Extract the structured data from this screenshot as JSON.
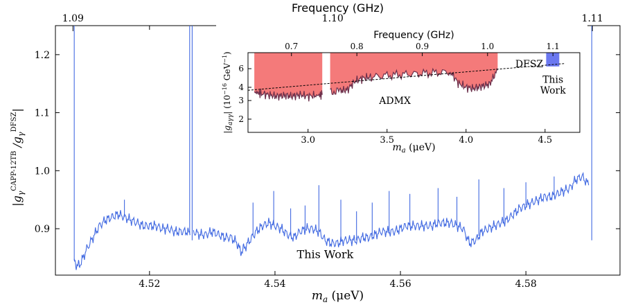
{
  "chart_data": [
    {
      "type": "line",
      "name": "main",
      "xlabel_prefix": "m",
      "xlabel_sub": "a",
      "xlabel_units": "(μeV)",
      "ylabel": "|g_γ^CAPP-12TB / g_γ^DFSZ|",
      "ylabel_parts": {
        "open": "|g",
        "sub1": "γ",
        "sup1": "CAPP-12TB",
        "slash": " /g",
        "sub2": "γ",
        "sup2": "DFSZ",
        "close": "|"
      },
      "top_axis_label": "Frequency (GHz)",
      "xlim": [
        4.505,
        4.595
      ],
      "ylim": [
        0.82,
        1.25
      ],
      "xticks": [
        4.52,
        4.54,
        4.56,
        4.58
      ],
      "xtick_labels": [
        "4.52",
        "4.54",
        "4.56",
        "4.58"
      ],
      "yticks": [
        0.9,
        1.0,
        1.1,
        1.2
      ],
      "ytick_labels": [
        "0.9",
        "1.0",
        "1.1",
        "1.2"
      ],
      "top_ticks_mass": [
        4.5078,
        4.5492,
        4.5906
      ],
      "top_tick_labels": [
        "1.09",
        "1.10",
        "1.11"
      ],
      "annotation": "This Work",
      "series": [
        {
          "name": "This Work",
          "color": "#4169e1",
          "segments": [
            {
              "x": [
                4.508,
                4.5085,
                4.509,
                4.51,
                4.511,
                4.512,
                4.513,
                4.514,
                4.515,
                4.516,
                4.517,
                4.518,
                4.519,
                4.52,
                4.521,
                4.522,
                4.523,
                4.524,
                4.525,
                4.526,
                4.5265
              ],
              "y": [
                0.845,
                0.835,
                0.84,
                0.865,
                0.885,
                0.905,
                0.915,
                0.92,
                0.925,
                0.92,
                0.915,
                0.91,
                0.905,
                0.905,
                0.905,
                0.9,
                0.9,
                0.895,
                0.895,
                0.895,
                0.89
              ]
            },
            {
              "x": [
                4.527,
                4.528,
                4.529,
                4.53,
                4.531,
                4.532,
                4.533,
                4.534,
                4.5345,
                4.535,
                4.536,
                4.537,
                4.538,
                4.539,
                4.54,
                4.541,
                4.542,
                4.543,
                4.544,
                4.545,
                4.546,
                4.547,
                4.548,
                4.549,
                4.55,
                4.551,
                4.552,
                4.553,
                4.554,
                4.555,
                4.556,
                4.557,
                4.558,
                4.559,
                4.56,
                4.561,
                4.562,
                4.563,
                4.564,
                4.565,
                4.566,
                4.567,
                4.568,
                4.569,
                4.57,
                4.571,
                4.572,
                4.573,
                4.574,
                4.575,
                4.576,
                4.577,
                4.578,
                4.579,
                4.58,
                4.581,
                4.582,
                4.583,
                4.584,
                4.585,
                4.586,
                4.587,
                4.588,
                4.589,
                4.59
              ],
              "y": [
                0.895,
                0.89,
                0.89,
                0.895,
                0.89,
                0.885,
                0.885,
                0.875,
                0.86,
                0.865,
                0.88,
                0.895,
                0.905,
                0.91,
                0.905,
                0.9,
                0.89,
                0.885,
                0.895,
                0.9,
                0.9,
                0.895,
                0.88,
                0.875,
                0.875,
                0.88,
                0.88,
                0.88,
                0.885,
                0.885,
                0.89,
                0.895,
                0.895,
                0.895,
                0.9,
                0.905,
                0.905,
                0.905,
                0.905,
                0.905,
                0.91,
                0.91,
                0.91,
                0.905,
                0.9,
                0.875,
                0.88,
                0.895,
                0.9,
                0.905,
                0.91,
                0.915,
                0.925,
                0.935,
                0.94,
                0.945,
                0.95,
                0.955,
                0.955,
                0.96,
                0.965,
                0.97,
                0.985,
                0.99,
                0.975
              ]
            }
          ]
        }
      ],
      "spikes": [
        {
          "x": 4.508,
          "y": 1.25
        },
        {
          "x": 4.5905,
          "y": 1.25
        },
        {
          "x": 4.5264,
          "y": 1.25
        },
        {
          "x": 4.5268,
          "y": 1.25
        },
        {
          "x": 4.516,
          "y": 0.95
        },
        {
          "x": 4.5365,
          "y": 0.945
        },
        {
          "x": 4.5398,
          "y": 0.965
        },
        {
          "x": 4.5425,
          "y": 0.935
        },
        {
          "x": 4.5448,
          "y": 0.94
        },
        {
          "x": 4.547,
          "y": 0.975
        },
        {
          "x": 4.5505,
          "y": 0.95
        },
        {
          "x": 4.553,
          "y": 0.93
        },
        {
          "x": 4.5555,
          "y": 0.945
        },
        {
          "x": 4.5582,
          "y": 0.965
        },
        {
          "x": 4.5615,
          "y": 0.96
        },
        {
          "x": 4.566,
          "y": 0.97
        },
        {
          "x": 4.569,
          "y": 0.955
        },
        {
          "x": 4.5725,
          "y": 0.985
        },
        {
          "x": 4.5765,
          "y": 0.97
        },
        {
          "x": 4.58,
          "y": 0.98
        },
        {
          "x": 4.5845,
          "y": 0.99
        }
      ]
    },
    {
      "type": "area",
      "name": "inset",
      "xlabel_prefix": "m",
      "xlabel_sub": "a",
      "xlabel_units": "(μeV)",
      "ylabel": "|g_aγγ| (10^-16 GeV^-1)",
      "ylabel_parts": {
        "open": "|g",
        "sub": "aγγ",
        "mid": "| (10",
        "sup1": "−16",
        "units": " GeV",
        "sup2": "−1",
        "close": ")"
      },
      "top_axis_label": "Frequency (GHz)",
      "scale": "log-y",
      "xlim": [
        2.62,
        4.72
      ],
      "ylim": [
        1.5,
        8.5
      ],
      "xticks": [
        3.0,
        3.5,
        4.0,
        4.5
      ],
      "xtick_labels": [
        "3.0",
        "3.5",
        "4.0",
        "4.5"
      ],
      "yticks": [
        2,
        3,
        4,
        6
      ],
      "ytick_labels": [
        "2",
        "3",
        "4",
        "6"
      ],
      "top_ticks_mass": [
        2.895,
        3.309,
        3.723,
        4.136,
        4.55
      ],
      "top_tick_labels": [
        "0.7",
        "0.8",
        "0.9",
        "1.0",
        "1.1"
      ],
      "annotations": {
        "admx": "ADMX",
        "dfsz": "DFSZ",
        "this_work_line1": "This",
        "this_work_line2": "Work"
      },
      "dfsz_line": {
        "x": [
          2.62,
          4.62
        ],
        "y": [
          3.75,
          6.7
        ]
      },
      "admx": {
        "color": "#f47a7a",
        "edge_color": "#6b2e4a",
        "segments": [
          {
            "x": [
              2.66,
              2.7,
              2.75,
              2.8,
              2.85,
              2.9,
              2.95,
              3.0,
              3.05,
              3.09
            ],
            "y": [
              3.6,
              3.5,
              3.4,
              3.3,
              3.35,
              3.3,
              3.4,
              3.3,
              3.35,
              3.4
            ]
          },
          {
            "x": [
              3.14,
              3.2,
              3.25,
              3.3,
              3.35,
              3.4,
              3.5,
              3.6,
              3.7,
              3.8,
              3.9,
              3.95,
              4.0,
              4.05,
              4.1,
              4.15,
              4.2
            ],
            "y": [
              3.6,
              3.7,
              3.8,
              4.6,
              4.9,
              5.0,
              5.2,
              5.3,
              5.4,
              5.5,
              5.6,
              4.4,
              4.0,
              3.9,
              4.1,
              4.3,
              5.8
            ]
          }
        ]
      },
      "this_work": {
        "color": "#6b78f0",
        "x": [
          4.507,
          4.59
        ],
        "y_low": 6.3,
        "y_high": 8.5
      }
    }
  ]
}
